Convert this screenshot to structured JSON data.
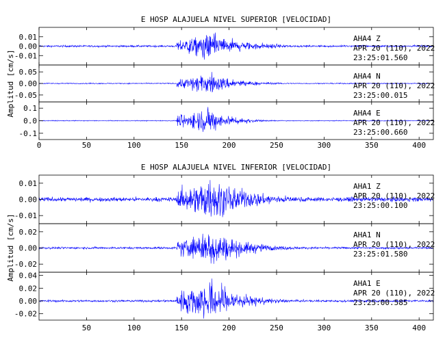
{
  "chart_data": [
    {
      "type": "line",
      "title": "E HOSP ALAJUELA NIVEL SUPERIOR [VELOCIDAD]",
      "ylabel": "Amplitud [cm/s]",
      "xlim": [
        0,
        415
      ],
      "xticks": [
        0,
        50,
        100,
        150,
        200,
        250,
        300,
        350,
        400
      ],
      "show_x_ticklabels": true,
      "trace_color": "#0000ff",
      "channels": [
        {
          "station": "AHA4",
          "component": "Z",
          "date": "APR 20 (110), 2022",
          "time": "23:25:01.560",
          "ylim": [
            -0.02,
            0.02
          ],
          "yticks": [
            -0.01,
            0.0,
            0.01
          ],
          "ytick_labels": [
            "-0.01",
            "0.00",
            "0.01"
          ],
          "noise": 0.0009,
          "peak": 0.016,
          "onset": 145,
          "peak_at": 178,
          "decay": 38
        },
        {
          "station": "AHA4",
          "component": "N",
          "date": "APR 20 (110), 2022",
          "time": "23:25:00.015",
          "ylim": [
            -0.08,
            0.08
          ],
          "yticks": [
            -0.05,
            0.0,
            0.05
          ],
          "ytick_labels": [
            "-0.05",
            "0.00",
            "0.05"
          ],
          "noise": 0.002,
          "peak": 0.055,
          "onset": 145,
          "peak_at": 180,
          "decay": 28
        },
        {
          "station": "AHA4",
          "component": "E",
          "date": "APR 20 (110), 2022",
          "time": "23:25:00.660",
          "ylim": [
            -0.15,
            0.15
          ],
          "yticks": [
            -0.1,
            0.0,
            0.1
          ],
          "ytick_labels": [
            "-0.1",
            "0.0",
            "0.1"
          ],
          "noise": 0.003,
          "peak": 0.12,
          "onset": 145,
          "peak_at": 178,
          "decay": 22
        }
      ]
    },
    {
      "type": "line",
      "title": "E HOSP ALAJUELA NIVEL INFERIOR [VELOCIDAD]",
      "ylabel": "Amplitud [cm/s]",
      "xlim": [
        0,
        415
      ],
      "xticks": [
        50,
        100,
        150,
        200,
        250,
        300,
        350,
        400
      ],
      "show_x_ticklabels": true,
      "trace_color": "#0000ff",
      "channels": [
        {
          "station": "AHA1",
          "component": "Z",
          "date": "APR 20 (110), 2022",
          "time": "23:25:00.100",
          "ylim": [
            -0.015,
            0.015
          ],
          "yticks": [
            -0.01,
            0.0,
            0.01
          ],
          "ytick_labels": [
            "-0.01",
            "0.00",
            "0.01"
          ],
          "noise": 0.0012,
          "peak": 0.015,
          "onset": 145,
          "peak_at": 180,
          "decay": 45
        },
        {
          "station": "AHA1",
          "component": "N",
          "date": "APR 20 (110), 2022",
          "time": "23:25:01.580",
          "ylim": [
            -0.03,
            0.03
          ],
          "yticks": [
            -0.02,
            0.0,
            0.02
          ],
          "ytick_labels": [
            "-0.02",
            "0.00",
            "0.02"
          ],
          "noise": 0.0012,
          "peak": 0.026,
          "onset": 145,
          "peak_at": 180,
          "decay": 35
        },
        {
          "station": "AHA1",
          "component": "E",
          "date": "APR 20 (110), 2022",
          "time": "23:25:00.585",
          "ylim": [
            -0.03,
            0.045
          ],
          "yticks": [
            -0.02,
            0.0,
            0.02,
            0.04
          ],
          "ytick_labels": [
            "-0.02",
            "0.00",
            "0.02",
            "0.04"
          ],
          "noise": 0.0015,
          "peak": 0.04,
          "onset": 145,
          "peak_at": 180,
          "decay": 30
        }
      ]
    }
  ]
}
